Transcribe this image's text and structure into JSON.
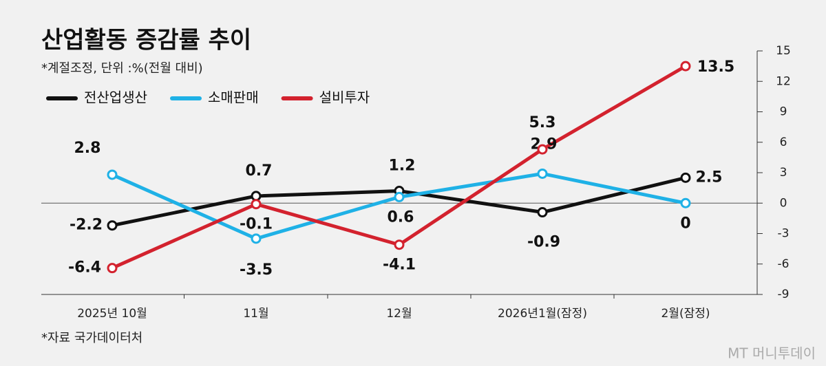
{
  "chart_data": {
    "type": "line",
    "title": "산업활동 증감률 추이",
    "subtitle": "*계절조정, 단위 :%(전월 대비)",
    "source": "*자료 국가데이터처",
    "watermark": "MT 머니투데이",
    "categories": [
      "2025년 10월",
      "11월",
      "12월",
      "2026년1월(잠정)",
      "2월(잠정)"
    ],
    "series": [
      {
        "name": "전산업생산",
        "color": "#111111",
        "values": [
          -2.2,
          0.7,
          1.2,
          -0.9,
          2.5
        ]
      },
      {
        "name": "소매판매",
        "color": "#1fb1e6",
        "values": [
          2.8,
          -3.5,
          0.6,
          2.9,
          0
        ]
      },
      {
        "name": "설비투자",
        "color": "#d3222e",
        "values": [
          -6.4,
          -0.1,
          -4.1,
          5.3,
          13.5
        ]
      }
    ],
    "ylim": [
      -9,
      15
    ],
    "yticks": [
      -9,
      -6,
      -3,
      0,
      3,
      6,
      9,
      12,
      15
    ],
    "y_axis_side": "right"
  }
}
